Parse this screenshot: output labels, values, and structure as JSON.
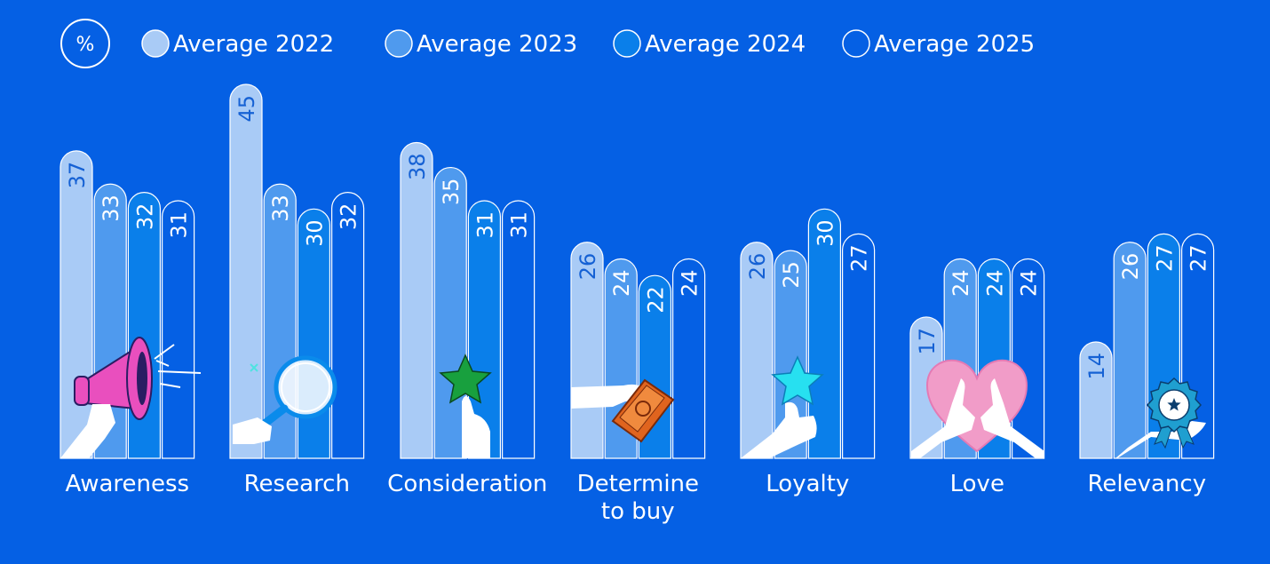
{
  "chart_data": {
    "type": "bar",
    "unit_badge": "%",
    "categories": [
      [
        "Awareness"
      ],
      [
        "Research"
      ],
      [
        "Consideration"
      ],
      [
        "Determine",
        "to buy"
      ],
      [
        "Loyalty"
      ],
      [
        "Love"
      ],
      [
        "Relevancy"
      ]
    ],
    "series": [
      {
        "name": "Average 2022",
        "values": [
          37,
          45,
          38,
          26,
          26,
          17,
          14
        ]
      },
      {
        "name": "Average 2023",
        "values": [
          33,
          33,
          35,
          24,
          25,
          24,
          26
        ]
      },
      {
        "name": "Average 2024",
        "values": [
          32,
          30,
          31,
          22,
          30,
          24,
          27
        ]
      },
      {
        "name": "Average 2025",
        "values": [
          31,
          32,
          31,
          24,
          27,
          24,
          27
        ]
      }
    ],
    "ylim": [
      0,
      45
    ],
    "grid": false,
    "legend_position": "top",
    "colors": {
      "background": "#0560E4",
      "series": [
        "#A9CBF6",
        "#4F9AEE",
        "#0A7FEA",
        "#0560E4"
      ],
      "bar_outline": "#FFFFFF",
      "label_on_light": "#1561D4",
      "label_on_dark": "#FFFFFF",
      "text": "#FFFFFF"
    },
    "icons": [
      "megaphone-icon",
      "magnifier-icon",
      "green-star-icon",
      "money-wallet-icon",
      "cyan-star-icon",
      "heart-hands-icon",
      "award-badge-icon"
    ]
  }
}
